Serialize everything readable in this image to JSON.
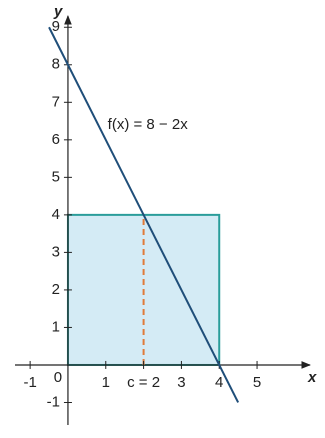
{
  "chart_data": {
    "type": "line",
    "x": [
      -0.5,
      4.5
    ],
    "series": [
      {
        "name": "f(x) = 8 − 2x",
        "color": "#1f4e79",
        "values": [
          9,
          -1
        ]
      }
    ],
    "xlim": [
      -1.4,
      6.4
    ],
    "ylim": [
      -1.6,
      9.3
    ],
    "xticks": [
      -1,
      1,
      3,
      4,
      5
    ],
    "yticks": [
      -1,
      1,
      2,
      3,
      4,
      5,
      6,
      7,
      8,
      9
    ],
    "origin_label": "0",
    "xlabel": "x",
    "ylabel": "y",
    "rectangle": {
      "x": [
        0,
        4
      ],
      "y": [
        0,
        4
      ],
      "fill": "#d4ebf5",
      "stroke": "#2a9d9a"
    },
    "marker": {
      "x": 2,
      "label": "c = 2",
      "color": "#e07b39"
    }
  }
}
